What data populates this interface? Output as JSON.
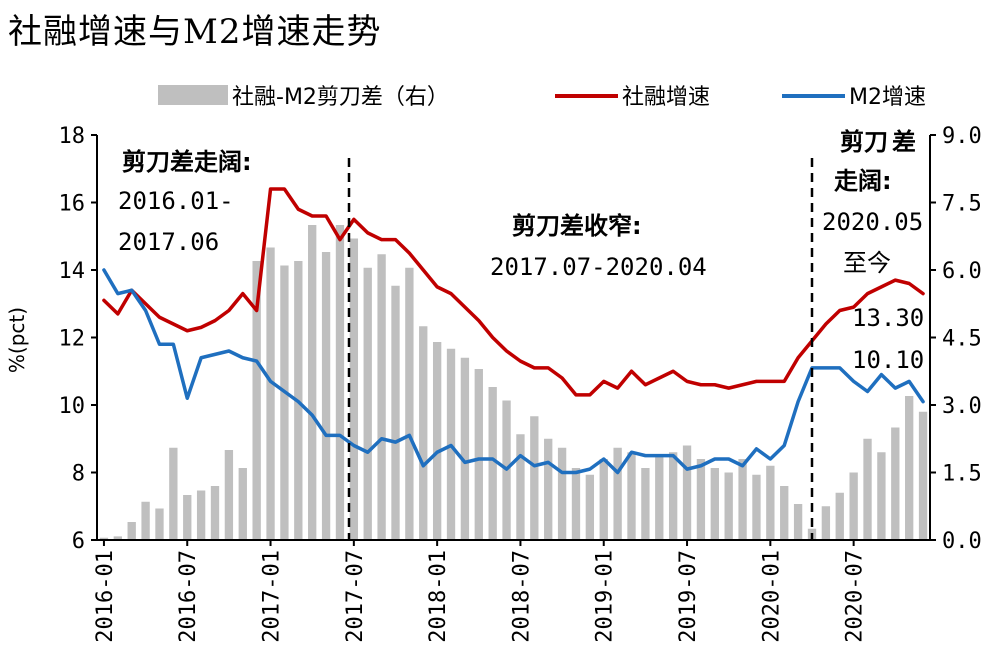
{
  "title": "社融增速与M2增速走势",
  "chart_data": {
    "type": "line",
    "title": "社融增速与M2增速走势",
    "ylabel": "%(pct)",
    "ylim_left": [
      6,
      18
    ],
    "ylim_right": [
      0.0,
      9.0
    ],
    "left_ticks": [
      "6",
      "8",
      "10",
      "12",
      "14",
      "16",
      "18"
    ],
    "right_ticks": [
      "0.0",
      "1.5",
      "3.0",
      "4.5",
      "6.0",
      "7.5",
      "9.0"
    ],
    "x_tick_labels": [
      "2016-01",
      "2016-07",
      "2017-01",
      "2017-07",
      "2018-01",
      "2018-07",
      "2019-01",
      "2019-07",
      "2020-01",
      "2020-07"
    ],
    "x": [
      "2016-01",
      "2016-02",
      "2016-03",
      "2016-04",
      "2016-05",
      "2016-06",
      "2016-07",
      "2016-08",
      "2016-09",
      "2016-10",
      "2016-11",
      "2016-12",
      "2017-01",
      "2017-02",
      "2017-03",
      "2017-04",
      "2017-05",
      "2017-06",
      "2017-07",
      "2017-08",
      "2017-09",
      "2017-10",
      "2017-11",
      "2017-12",
      "2018-01",
      "2018-02",
      "2018-03",
      "2018-04",
      "2018-05",
      "2018-06",
      "2018-07",
      "2018-08",
      "2018-09",
      "2018-10",
      "2018-11",
      "2018-12",
      "2019-01",
      "2019-02",
      "2019-03",
      "2019-04",
      "2019-05",
      "2019-06",
      "2019-07",
      "2019-08",
      "2019-09",
      "2019-10",
      "2019-11",
      "2019-12",
      "2020-01",
      "2020-02",
      "2020-03",
      "2020-04",
      "2020-05",
      "2020-06",
      "2020-07",
      "2020-08",
      "2020-09",
      "2020-10",
      "2020-11",
      "2020-12"
    ],
    "series": [
      {
        "name": "社融-M2剪刀差（右）",
        "kind": "bar",
        "axis": "right",
        "color": "#bfbfbf",
        "values": [
          0.05,
          0.08,
          0.4,
          0.85,
          0.7,
          2.05,
          1.0,
          1.1,
          1.2,
          2.0,
          1.6,
          6.2,
          6.5,
          6.1,
          6.2,
          7.0,
          6.4,
          7.0,
          6.7,
          6.05,
          6.35,
          5.65,
          6.05,
          4.75,
          4.4,
          4.25,
          4.05,
          3.8,
          3.4,
          3.1,
          2.35,
          2.75,
          2.25,
          2.05,
          1.6,
          1.45,
          1.8,
          2.05,
          1.95,
          1.6,
          1.85,
          1.95,
          2.1,
          1.8,
          1.6,
          1.5,
          1.8,
          1.45,
          1.65,
          1.2,
          0.8,
          0.25,
          0.75,
          1.05,
          1.5,
          2.25,
          1.95,
          2.5,
          3.2,
          2.85
        ]
      },
      {
        "name": "社融增速",
        "kind": "line",
        "axis": "left",
        "color": "#c00000",
        "values": [
          13.1,
          12.7,
          13.4,
          13.0,
          12.6,
          12.4,
          12.2,
          12.3,
          12.5,
          12.8,
          13.3,
          12.8,
          16.4,
          16.4,
          15.8,
          15.6,
          15.6,
          14.9,
          15.5,
          15.1,
          14.9,
          14.9,
          14.5,
          14.0,
          13.5,
          13.3,
          12.9,
          12.5,
          12.0,
          11.6,
          11.3,
          11.1,
          11.1,
          10.8,
          10.3,
          10.3,
          10.7,
          10.5,
          11.0,
          10.6,
          10.8,
          11.0,
          10.7,
          10.6,
          10.6,
          10.5,
          10.6,
          10.7,
          10.7,
          10.7,
          11.4,
          11.9,
          12.4,
          12.8,
          12.9,
          13.3,
          13.5,
          13.7,
          13.6,
          13.3
        ]
      },
      {
        "name": "M2增速",
        "kind": "line",
        "axis": "left",
        "color": "#1f6fbf",
        "values": [
          14.0,
          13.3,
          13.4,
          12.8,
          11.8,
          11.8,
          10.2,
          11.4,
          11.5,
          11.6,
          11.4,
          11.3,
          10.7,
          10.4,
          10.1,
          9.7,
          9.1,
          9.1,
          8.8,
          8.6,
          9.0,
          8.9,
          9.1,
          8.2,
          8.6,
          8.8,
          8.3,
          8.4,
          8.4,
          8.1,
          8.5,
          8.2,
          8.3,
          8.0,
          8.0,
          8.1,
          8.4,
          8.0,
          8.6,
          8.5,
          8.5,
          8.5,
          8.1,
          8.2,
          8.4,
          8.4,
          8.2,
          8.7,
          8.4,
          8.8,
          10.1,
          11.1,
          11.1,
          11.1,
          10.7,
          10.4,
          10.9,
          10.5,
          10.7,
          10.1
        ]
      }
    ],
    "legend_position": "top",
    "grid": false
  },
  "annotations": {
    "phase1_title": "剪刀差走阔:",
    "phase1_from": "2016.01-",
    "phase1_to": "2017.06",
    "phase2_title": "剪刀差收窄:",
    "phase2_range": "2017.07-2020.04",
    "phase3_title_1": "剪刀",
    "phase3_title_2": "差",
    "phase3_title_3": "走阔:",
    "phase3_from": "2020.05",
    "phase3_to": "至今",
    "value_1": "13.30",
    "value_2": "10.10"
  }
}
